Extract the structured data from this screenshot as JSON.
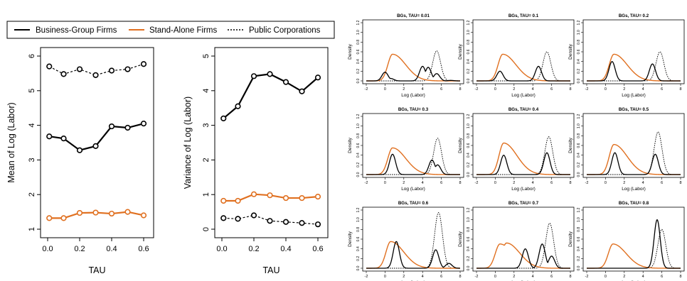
{
  "legend": {
    "items": [
      {
        "label": "Business-Group Firms",
        "color": "#000000",
        "dash": "solid"
      },
      {
        "label": "Stand-Alone Firms",
        "color": "#e07020",
        "dash": "solid"
      },
      {
        "label": "Public Corporations",
        "color": "#000000",
        "dash": "dotted"
      }
    ]
  },
  "chart_data": [
    {
      "type": "line",
      "title": "",
      "xlabel": "TAU",
      "ylabel": "Mean of  Log (Labor)",
      "x": [
        0.01,
        0.1,
        0.2,
        0.3,
        0.4,
        0.5,
        0.6
      ],
      "xticks": [
        "0.0",
        "0.2",
        "0.4",
        "0.6"
      ],
      "yticks": [
        "1",
        "2",
        "3",
        "4",
        "5",
        "6"
      ],
      "xlim": [
        0,
        0.6
      ],
      "ylim": [
        1,
        6
      ],
      "series": [
        {
          "name": "Business-Group Firms",
          "color": "#000000",
          "values": [
            3.68,
            3.62,
            3.28,
            3.4,
            3.97,
            3.93,
            4.05
          ]
        },
        {
          "name": "Stand-Alone Firms",
          "color": "#e07020",
          "values": [
            1.32,
            1.32,
            1.47,
            1.48,
            1.45,
            1.5,
            1.4
          ]
        },
        {
          "name": "Public Corporations",
          "color": "#000000",
          "values": [
            5.7,
            5.48,
            5.62,
            5.45,
            5.58,
            5.62,
            5.77
          ]
        }
      ]
    },
    {
      "type": "line",
      "title": "",
      "xlabel": "TAU",
      "ylabel": "Variance  of  Log (Labor)",
      "x": [
        0.01,
        0.1,
        0.2,
        0.3,
        0.4,
        0.5,
        0.6
      ],
      "xticks": [
        "0.0",
        "0.2",
        "0.4",
        "0.6"
      ],
      "yticks": [
        "0",
        "1",
        "2",
        "3",
        "4",
        "5"
      ],
      "xlim": [
        0,
        0.6
      ],
      "ylim": [
        0,
        5
      ],
      "series": [
        {
          "name": "Business-Group Firms",
          "color": "#000000",
          "values": [
            3.2,
            3.55,
            4.42,
            4.48,
            4.25,
            3.98,
            4.38
          ]
        },
        {
          "name": "Stand-Alone Firms",
          "color": "#e07020",
          "values": [
            0.82,
            0.82,
            1.01,
            0.98,
            0.9,
            0.9,
            0.94
          ]
        },
        {
          "name": "Public Corporations",
          "color": "#000000",
          "values": [
            0.32,
            0.3,
            0.4,
            0.24,
            0.21,
            0.18,
            0.14
          ]
        }
      ]
    }
  ],
  "density_panels": {
    "xlabel": "Log (Labor)",
    "ylabel": "Density",
    "xticks": [
      "-2",
      "0",
      "2",
      "4",
      "6",
      "8"
    ],
    "yticks": [
      "0.0",
      "0.2",
      "0.4",
      "0.6",
      "0.8",
      "1.0",
      "1.2"
    ],
    "xlim": [
      -2,
      8
    ],
    "ylim": [
      0,
      1.2
    ],
    "panels": [
      {
        "title": "BGs, TAU= 0.01",
        "bg": [
          [
            0,
            0.05
          ],
          [
            0.6,
            0.05
          ],
          [
            4.0,
            0.3
          ],
          [
            4.6,
            0.28
          ],
          [
            5.5,
            0.15
          ],
          [
            7.0,
            0.01
          ]
        ],
        "bg_extra": [
          [
            0.0,
            0.18
          ]
        ],
        "sa": [
          [
            0.8,
            0.55
          ]
        ],
        "pc": [
          [
            5.5,
            0.62
          ]
        ]
      },
      {
        "title": "BGs, TAU= 0.1",
        "bg": [
          [
            0.5,
            0.2
          ],
          [
            4.6,
            0.3
          ]
        ],
        "bg_extra": [],
        "sa": [
          [
            0.8,
            0.55
          ]
        ],
        "pc": [
          [
            5.5,
            0.6
          ]
        ]
      },
      {
        "title": "BGs, TAU= 0.2",
        "bg": [
          [
            0.7,
            0.4
          ],
          [
            5.0,
            0.35
          ]
        ],
        "bg_extra": [],
        "sa": [
          [
            0.9,
            0.55
          ]
        ],
        "pc": [
          [
            5.8,
            0.6
          ]
        ]
      },
      {
        "title": "BGs, TAU= 0.3",
        "bg": [
          [
            0.8,
            0.42
          ],
          [
            5.0,
            0.3
          ],
          [
            5.6,
            0.2
          ]
        ],
        "bg_extra": [],
        "sa": [
          [
            0.8,
            0.55
          ]
        ],
        "pc": [
          [
            5.6,
            0.75
          ]
        ]
      },
      {
        "title": "BGs, TAU= 0.4",
        "bg": [
          [
            0.9,
            0.4
          ],
          [
            5.5,
            0.45
          ]
        ],
        "bg_extra": [],
        "sa": [
          [
            0.9,
            0.65
          ]
        ],
        "pc": [
          [
            5.7,
            0.78
          ]
        ]
      },
      {
        "title": "BGs, TAU= 0.5",
        "bg": [
          [
            1.0,
            0.45
          ],
          [
            5.3,
            0.42
          ]
        ],
        "bg_extra": [],
        "sa": [
          [
            0.9,
            0.62
          ]
        ],
        "pc": [
          [
            5.6,
            0.88
          ]
        ]
      },
      {
        "title": "BGs, TAU= 0.6",
        "bg": [
          [
            1.2,
            0.55
          ],
          [
            5.4,
            0.38
          ],
          [
            6.8,
            0.1
          ]
        ],
        "bg_extra": [],
        "sa": [
          [
            0.6,
            0.55
          ]
        ],
        "pc": [
          [
            5.7,
            1.15
          ]
        ]
      },
      {
        "title": "BGs, TAU= 0.7",
        "bg": [
          [
            3.2,
            0.4
          ],
          [
            5.0,
            0.5
          ],
          [
            6.0,
            0.25
          ]
        ],
        "bg_extra": [],
        "sa": [
          [
            0.5,
            0.5
          ],
          [
            1.2,
            0.52
          ]
        ],
        "pc": [
          [
            5.8,
            0.93
          ]
        ]
      },
      {
        "title": "BGs, TAU= 0.8",
        "bg": [
          [
            5.5,
            1.0
          ]
        ],
        "bg_extra": [],
        "sa": [
          [
            0.8,
            0.5
          ]
        ],
        "pc": [
          [
            6.0,
            0.8
          ]
        ]
      }
    ]
  }
}
